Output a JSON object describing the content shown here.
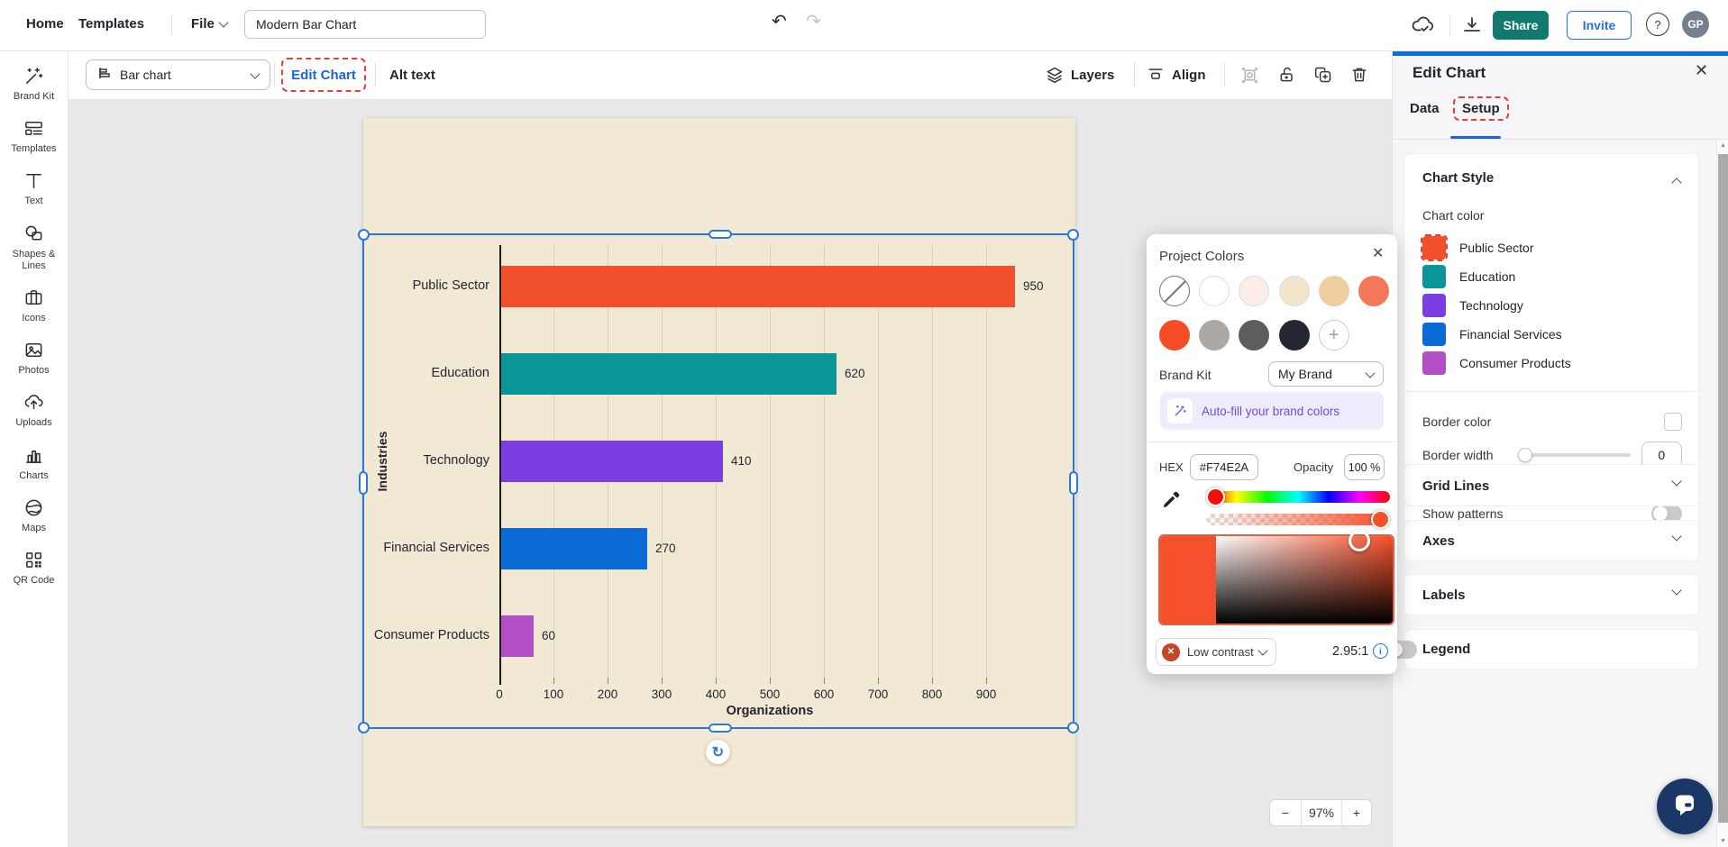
{
  "navbar": {
    "home": "Home",
    "templates": "Templates",
    "file": "File",
    "doc_title": "Modern Bar Chart",
    "share": "Share",
    "invite": "Invite",
    "help": "?",
    "avatar_initials": "GP"
  },
  "toolbar": {
    "chart_type": "Bar chart",
    "edit_chart": "Edit Chart",
    "alt_text": "Alt text",
    "layers": "Layers",
    "align": "Align"
  },
  "sidebar": {
    "items": [
      {
        "label": "Brand Kit",
        "icon": "wand-icon"
      },
      {
        "label": "Templates",
        "icon": "templates-icon"
      },
      {
        "label": "Text",
        "icon": "text-icon"
      },
      {
        "label": "Shapes & Lines",
        "icon": "shapes-icon"
      },
      {
        "label": "Icons",
        "icon": "icons-icon"
      },
      {
        "label": "Photos",
        "icon": "photos-icon"
      },
      {
        "label": "Uploads",
        "icon": "uploads-icon"
      },
      {
        "label": "Charts",
        "icon": "charts-icon"
      },
      {
        "label": "Maps",
        "icon": "maps-icon"
      },
      {
        "label": "QR Code",
        "icon": "qrcode-icon"
      }
    ]
  },
  "chart_data": {
    "type": "bar",
    "orientation": "horizontal",
    "categories": [
      "Public Sector",
      "Education",
      "Technology",
      "Financial Services",
      "Consumer Products"
    ],
    "values": [
      950,
      620,
      410,
      270,
      60
    ],
    "colors": [
      "#F2502B",
      "#0B9598",
      "#7B3EE2",
      "#0A6AD6",
      "#B34FC5"
    ],
    "xlabel": "Organizations",
    "ylabel": "Industries",
    "xlim": [
      0,
      1000
    ],
    "xticks": [
      0,
      100,
      200,
      300,
      400,
      500,
      600,
      700,
      800,
      900
    ],
    "grid": true,
    "legend": false,
    "background": "#F2E9D4"
  },
  "panel": {
    "title": "Edit Chart",
    "tabs": [
      {
        "label": "Data"
      },
      {
        "label": "Setup"
      }
    ],
    "chart_style": {
      "title": "Chart Style",
      "chart_color_label": "Chart color",
      "series": [
        {
          "label": "Public Sector",
          "color": "#F2502B",
          "annotated": true
        },
        {
          "label": "Education",
          "color": "#0B9598"
        },
        {
          "label": "Technology",
          "color": "#7B3EE2"
        },
        {
          "label": "Financial Services",
          "color": "#0A6AD6"
        },
        {
          "label": "Consumer Products",
          "color": "#B34FC5"
        }
      ],
      "border_color_label": "Border color",
      "border_width_label": "Border width",
      "border_width_value": "0",
      "show_patterns_label": "Show patterns"
    },
    "sections": {
      "grid_lines": "Grid Lines",
      "axes": "Axes",
      "labels": "Labels",
      "legend": "Legend"
    }
  },
  "color_popup": {
    "title": "Project Colors",
    "swatches_row1": [
      "none",
      "#FFFFFF",
      "#FCEDE7",
      "#F1E5CB",
      "#F0CDA1",
      "#F4775A"
    ],
    "swatches_row2": [
      "#F44D26",
      "#ACA8A6",
      "#5D5D5B",
      "#232734",
      "add"
    ],
    "brand_kit_label": "Brand Kit",
    "brand_kit_value": "My Brand",
    "autofill_label": "Auto-fill your brand colors",
    "hex_label": "HEX",
    "hex_value": "#F74E2A",
    "opacity_label": "Opacity",
    "opacity_value": "100 %",
    "contrast_label": "Low contrast",
    "contrast_ratio": "2.95:1"
  },
  "zoom_control": {
    "minus": "−",
    "value": "97%",
    "plus": "+"
  },
  "colors": {
    "accent_blue": "#0B6DE4",
    "link_blue": "#1C63DB",
    "selection_blue": "#2979D9",
    "share_teal": "#11796D",
    "invite_blue": "#2570EB",
    "annotation_red": "#E3403A",
    "canvas_beige": "#F2E9D4",
    "chat_navy": "#1B3768"
  }
}
